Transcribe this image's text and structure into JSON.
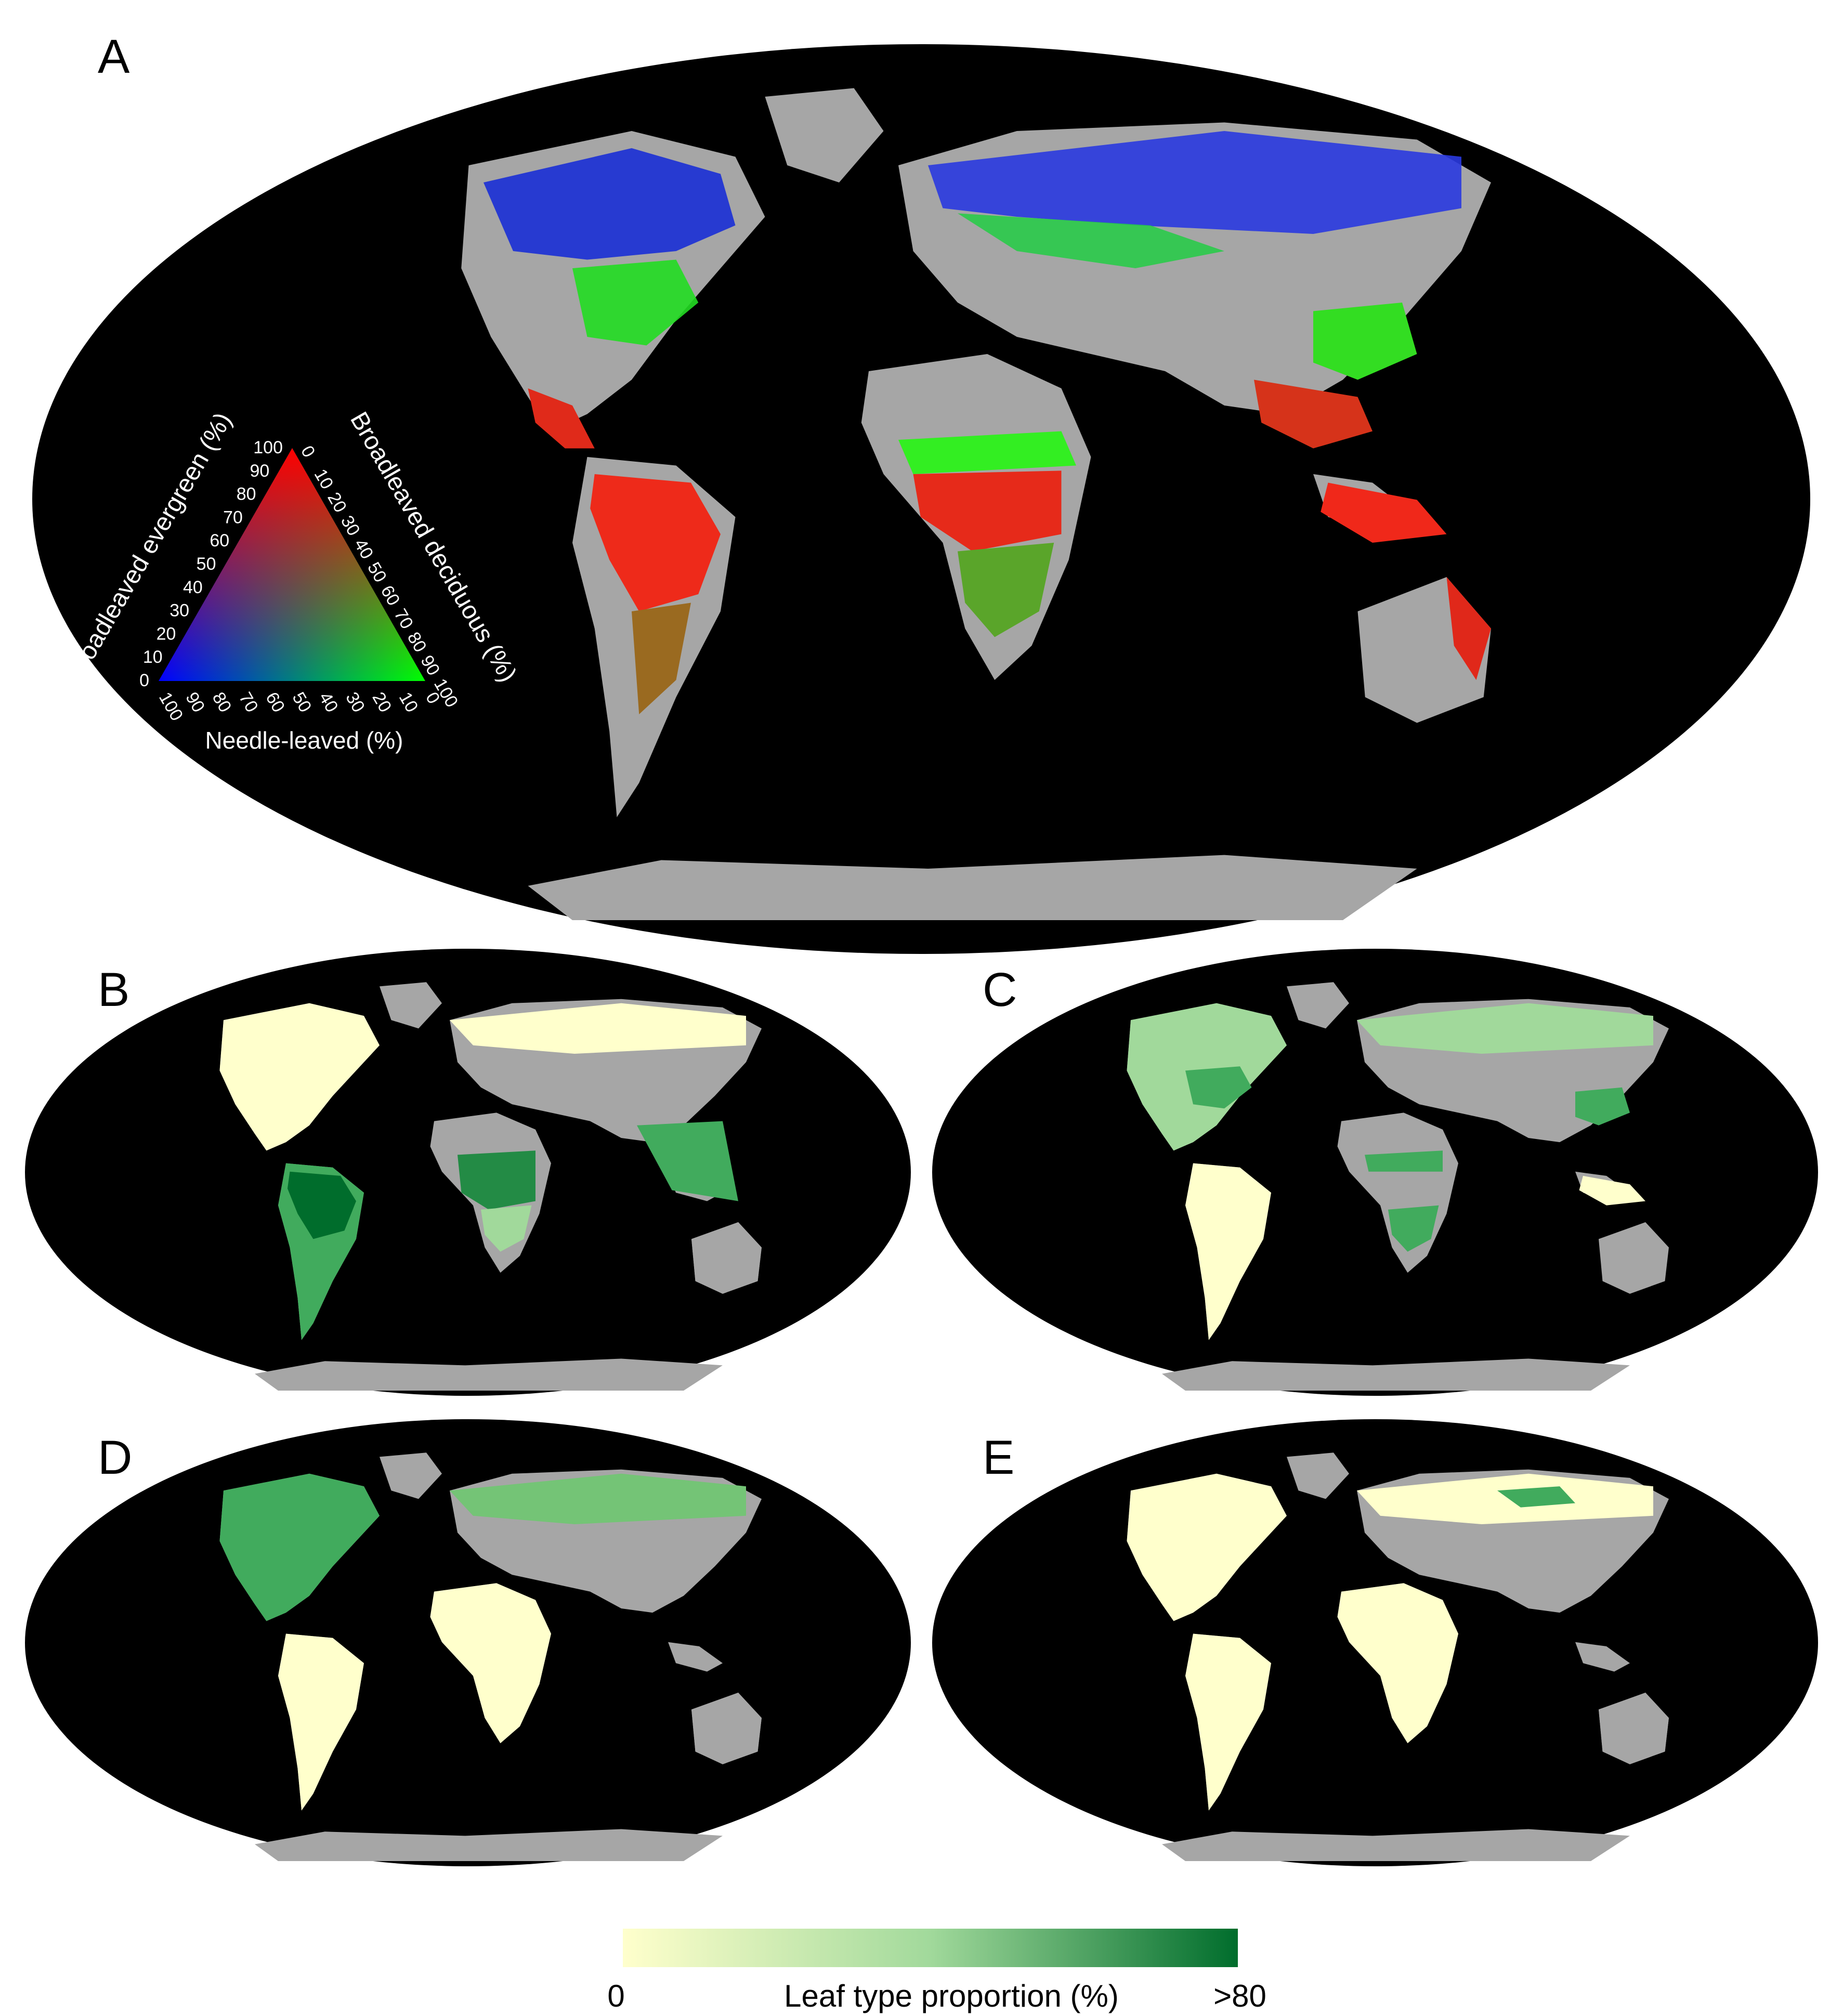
{
  "panels": {
    "a": "A",
    "b": "B",
    "c": "C",
    "d": "D",
    "e": "E"
  },
  "ternary": {
    "left_axis_title": "Broadleaved evergreen (%)",
    "right_axis_title": "Broadleaved deciduous (%)",
    "bottom_axis_title": "Needle-leaved (%)",
    "left_ticks": [
      "0",
      "10",
      "20",
      "30",
      "40",
      "50",
      "60",
      "70",
      "80",
      "90",
      "100"
    ],
    "right_ticks": [
      "0",
      "10",
      "20",
      "30",
      "40",
      "50",
      "60",
      "70",
      "80",
      "90",
      "100"
    ],
    "bottom_ticks": [
      "100",
      "90",
      "80",
      "70",
      "60",
      "50",
      "40",
      "30",
      "20",
      "10",
      "0"
    ],
    "corner_colors": {
      "evergreen": "#ff0000",
      "deciduous": "#00ff00",
      "needle": "#0000ff"
    }
  },
  "legend": {
    "title": "Leaf type proportion (%)",
    "min_label": "0",
    "max_label": ">80",
    "min_color": "#ffffcc",
    "max_color": "#006d2c"
  },
  "colors": {
    "ocean": "#000000",
    "land_no_forest": "#a6a6a6"
  }
}
